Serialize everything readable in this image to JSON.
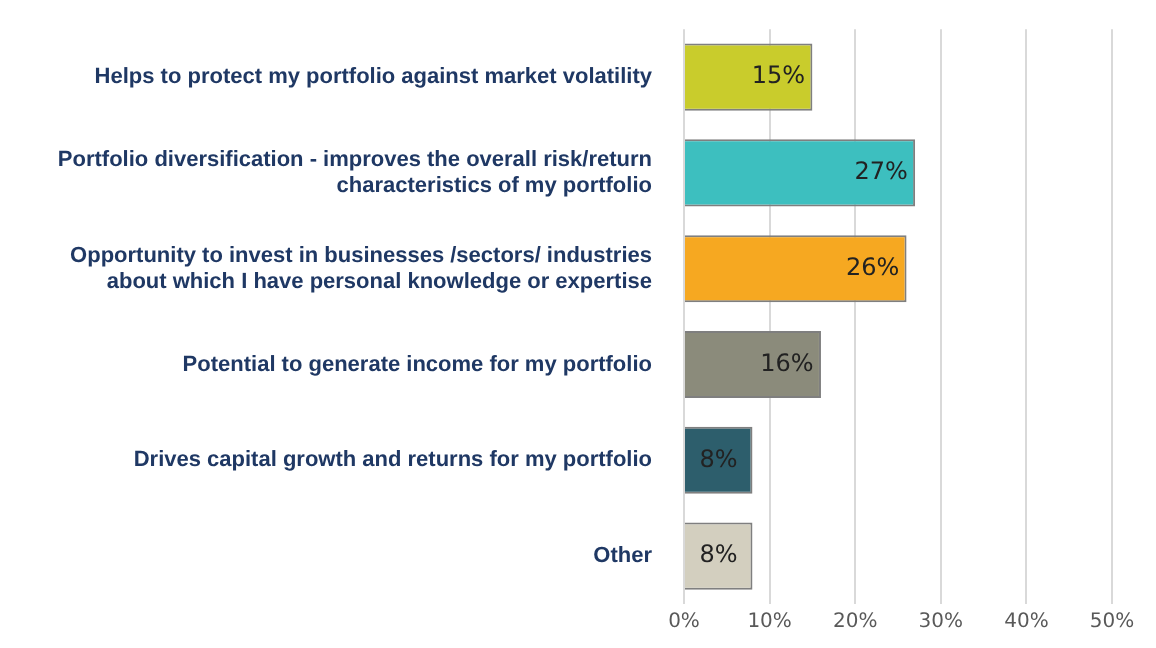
{
  "chart_data": {
    "type": "bar",
    "orientation": "horizontal",
    "categories": [
      "Helps to protect my portfolio against market volatility",
      "Portfolio diversification - improves the overall risk/return characteristics of my portfolio",
      "Opportunity to invest in businesses /sectors/ industries about which I have personal knowledge or expertise",
      "Potential to generate income for my portfolio",
      "Drives capital growth and returns for my portfolio",
      "Other"
    ],
    "values": [
      15,
      27,
      26,
      16,
      8,
      8
    ],
    "colors": [
      "#c9cc2c",
      "#3dbfbf",
      "#f6a821",
      "#8b8b7b",
      "#2d5e6c",
      "#d3cfbf"
    ],
    "value_labels": [
      "15%",
      "27%",
      "26%",
      "16%",
      "8%",
      "8%"
    ],
    "xlim": [
      0,
      50
    ],
    "xticks": [
      {
        "value": 0,
        "label": "0%"
      },
      {
        "value": 10,
        "label": "10%"
      },
      {
        "value": 20,
        "label": "20%"
      },
      {
        "value": 30,
        "label": "30%"
      },
      {
        "value": 40,
        "label": "40%"
      },
      {
        "value": 50,
        "label": "50%"
      }
    ],
    "grid": "x"
  }
}
